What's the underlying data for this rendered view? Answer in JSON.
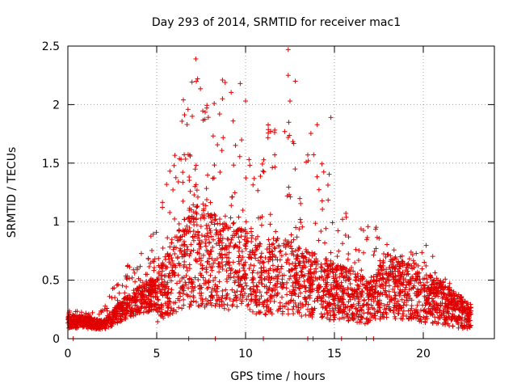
{
  "chart_data": {
    "type": "scatter",
    "title": "Day 293 of 2014, SRMTID for receiver mac1",
    "xlabel": "GPS time / hours",
    "ylabel": "SRMTID / TECUs",
    "xlim": [
      0,
      24
    ],
    "ylim": [
      0,
      2.5
    ],
    "xticks": [
      0,
      5,
      10,
      15,
      20
    ],
    "yticks": [
      0,
      0.5,
      1,
      1.5,
      2,
      2.5
    ],
    "xtick_labels": [
      "0",
      "5",
      "10",
      "15",
      "20"
    ],
    "ytick_labels": [
      "0",
      "0.5",
      "1",
      "1.5",
      "2",
      "2.5"
    ],
    "grid": true,
    "series": [
      {
        "name": "SRMTID",
        "color": "#e00000",
        "marker": "+",
        "envelope_hours": [
          0,
          1,
          2,
          3,
          4,
          5,
          6,
          7,
          8,
          9,
          10,
          11,
          12,
          13,
          14,
          15,
          16,
          17,
          18,
          19,
          20,
          21,
          22,
          22.7
        ],
        "envelope_typical": [
          0.15,
          0.15,
          0.12,
          0.25,
          0.35,
          0.4,
          0.6,
          0.8,
          0.75,
          0.7,
          0.65,
          0.55,
          0.6,
          0.55,
          0.5,
          0.45,
          0.4,
          0.35,
          0.5,
          0.45,
          0.4,
          0.35,
          0.25,
          0.2
        ],
        "envelope_max": [
          0.25,
          0.22,
          0.25,
          0.6,
          0.7,
          1.0,
          1.6,
          2.4,
          2.2,
          2.2,
          1.7,
          1.6,
          2.47,
          1.5,
          1.9,
          1.3,
          1.0,
          1.2,
          0.8,
          0.7,
          0.85,
          0.6,
          0.4,
          0.25
        ],
        "highlight_points": [
          [
            7.2,
            2.39
          ],
          [
            7.3,
            2.22
          ],
          [
            8.7,
            2.21
          ],
          [
            8.7,
            2.05
          ],
          [
            9.7,
            2.18
          ],
          [
            10.0,
            2.03
          ],
          [
            12.4,
            2.47
          ],
          [
            12.4,
            2.25
          ],
          [
            12.8,
            2.2
          ],
          [
            12.5,
            2.03
          ],
          [
            12.2,
            1.77
          ],
          [
            14.8,
            1.89
          ],
          [
            6.5,
            2.04
          ],
          [
            7.0,
            1.9
          ],
          [
            9.3,
            1.86
          ],
          [
            12.4,
            1.72
          ],
          [
            0.3,
            0.0
          ],
          [
            6.8,
            0.0
          ],
          [
            8.3,
            0.0
          ],
          [
            11.0,
            0.0
          ],
          [
            13.5,
            0.0
          ],
          [
            13.8,
            0.0
          ],
          [
            15.4,
            0.0
          ],
          [
            16.8,
            0.0
          ],
          [
            17.2,
            0.0
          ]
        ]
      }
    ]
  }
}
